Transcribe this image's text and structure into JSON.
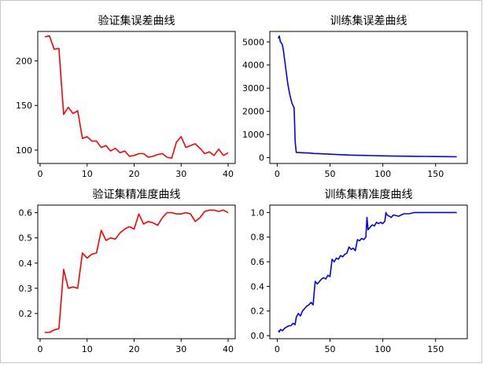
{
  "chart_data": [
    {
      "type": "line",
      "title": "验证集误差曲线",
      "xlabel": "",
      "ylabel": "",
      "color": "#ff0000",
      "xlim": [
        -0.5,
        41.5
      ],
      "ylim": [
        85,
        233
      ],
      "xticks": [
        0,
        10,
        20,
        30,
        40
      ],
      "yticks": [
        100,
        150,
        200
      ],
      "xtick_labels": [
        "0",
        "10",
        "20",
        "30",
        "40"
      ],
      "ytick_labels": [
        "100",
        "150",
        "200"
      ],
      "series": [
        {
          "x": [
            1,
            2,
            3,
            4,
            5,
            6,
            7,
            8,
            9,
            10,
            11,
            12,
            13,
            14,
            15,
            16,
            17,
            18,
            19,
            20,
            21,
            22,
            23,
            24,
            25,
            26,
            27,
            28,
            29,
            30,
            31,
            32,
            33,
            34,
            35,
            36,
            37,
            38,
            39,
            40
          ],
          "y": [
            227,
            228,
            213,
            214,
            140,
            148,
            141,
            144,
            113,
            115,
            110,
            110,
            103,
            105,
            99,
            102,
            97,
            99,
            93,
            94,
            96,
            96,
            92,
            93,
            95,
            96,
            92,
            91,
            109,
            115,
            103,
            105,
            107,
            102,
            96,
            98,
            94,
            101,
            94,
            97
          ]
        }
      ]
    },
    {
      "type": "line",
      "title": "训练集误差曲线",
      "xlabel": "",
      "ylabel": "",
      "color": "#0000ff",
      "xlim": [
        -7,
        180
      ],
      "ylim": [
        -250,
        5450
      ],
      "xticks": [
        0,
        50,
        100,
        150
      ],
      "yticks": [
        0,
        1000,
        2000,
        3000,
        4000,
        5000
      ],
      "xtick_labels": [
        "0",
        "50",
        "100",
        "150"
      ],
      "ytick_labels": [
        "0",
        "1000",
        "2000",
        "3000",
        "4000",
        "5000"
      ],
      "series": [
        {
          "x": [
            1,
            2,
            3,
            4,
            5,
            6,
            8,
            10,
            12,
            14,
            16,
            17,
            18,
            20,
            25,
            30,
            35,
            40,
            50,
            60,
            70,
            80,
            90,
            100,
            110,
            120,
            130,
            140,
            150,
            160,
            170
          ],
          "y": [
            5150,
            5250,
            5000,
            4950,
            4850,
            4600,
            3900,
            3200,
            2700,
            2350,
            2150,
            700,
            230,
            220,
            210,
            200,
            180,
            170,
            150,
            130,
            110,
            100,
            90,
            80,
            70,
            65,
            60,
            55,
            50,
            45,
            40
          ]
        }
      ]
    },
    {
      "type": "line",
      "title": "验证集精准度曲线",
      "xlabel": "",
      "ylabel": "",
      "color": "#ff0000",
      "xlim": [
        -0.5,
        41.5
      ],
      "ylim": [
        0.1,
        0.63
      ],
      "xticks": [
        0,
        10,
        20,
        30,
        40
      ],
      "yticks": [
        0.2,
        0.3,
        0.4,
        0.5,
        0.6
      ],
      "xtick_labels": [
        "0",
        "10",
        "20",
        "30",
        "40"
      ],
      "ytick_labels": [
        "0.2",
        "0.3",
        "0.4",
        "0.5",
        "0.6"
      ],
      "series": [
        {
          "x": [
            1,
            2,
            3,
            4,
            5,
            6,
            7,
            8,
            9,
            10,
            11,
            12,
            13,
            14,
            15,
            16,
            17,
            18,
            19,
            20,
            21,
            22,
            23,
            24,
            25,
            26,
            27,
            28,
            29,
            30,
            31,
            32,
            33,
            34,
            35,
            36,
            37,
            38,
            39,
            40
          ],
          "y": [
            0.125,
            0.125,
            0.135,
            0.14,
            0.375,
            0.3,
            0.305,
            0.3,
            0.44,
            0.42,
            0.435,
            0.44,
            0.53,
            0.49,
            0.5,
            0.495,
            0.52,
            0.535,
            0.545,
            0.535,
            0.595,
            0.555,
            0.565,
            0.56,
            0.55,
            0.58,
            0.6,
            0.6,
            0.595,
            0.595,
            0.6,
            0.595,
            0.565,
            0.58,
            0.605,
            0.61,
            0.61,
            0.605,
            0.61,
            0.6
          ]
        }
      ]
    },
    {
      "type": "line",
      "title": "训练集精准度曲线",
      "xlabel": "",
      "ylabel": "",
      "color": "#0000ff",
      "xlim": [
        -7,
        180
      ],
      "ylim": [
        -0.025,
        1.06
      ],
      "xticks": [
        0,
        50,
        100,
        150
      ],
      "yticks": [
        0.0,
        0.2,
        0.4,
        0.6,
        0.8,
        1.0
      ],
      "xtick_labels": [
        "0",
        "50",
        "100",
        "150"
      ],
      "ytick_labels": [
        "0.0",
        "0.2",
        "0.4",
        "0.6",
        "0.8",
        "1.0"
      ],
      "series": [
        {
          "x": [
            1,
            2,
            3,
            5,
            7,
            9,
            11,
            13,
            15,
            17,
            18,
            20,
            22,
            24,
            26,
            28,
            30,
            32,
            34,
            35,
            36,
            38,
            40,
            42,
            44,
            46,
            48,
            50,
            52,
            54,
            56,
            58,
            60,
            62,
            64,
            66,
            68,
            70,
            72,
            74,
            76,
            78,
            80,
            82,
            84,
            85,
            86,
            88,
            90,
            92,
            94,
            96,
            98,
            100,
            102,
            103,
            104,
            106,
            108,
            110,
            115,
            120,
            125,
            130,
            135,
            140,
            150,
            160,
            170
          ],
          "y": [
            0.04,
            0.03,
            0.05,
            0.04,
            0.06,
            0.07,
            0.08,
            0.08,
            0.1,
            0.09,
            0.15,
            0.18,
            0.16,
            0.2,
            0.22,
            0.24,
            0.25,
            0.27,
            0.25,
            0.35,
            0.44,
            0.42,
            0.44,
            0.46,
            0.47,
            0.46,
            0.49,
            0.48,
            0.62,
            0.6,
            0.63,
            0.62,
            0.65,
            0.64,
            0.66,
            0.67,
            0.72,
            0.7,
            0.71,
            0.69,
            0.78,
            0.77,
            0.79,
            0.78,
            0.8,
            0.96,
            0.86,
            0.88,
            0.9,
            0.89,
            0.92,
            0.91,
            0.92,
            0.91,
            0.93,
            1.0,
            0.98,
            0.97,
            0.96,
            0.98,
            0.97,
            0.99,
            0.99,
            1.0,
            1.0,
            1.0,
            1.0,
            1.0,
            1.0
          ]
        }
      ]
    }
  ]
}
